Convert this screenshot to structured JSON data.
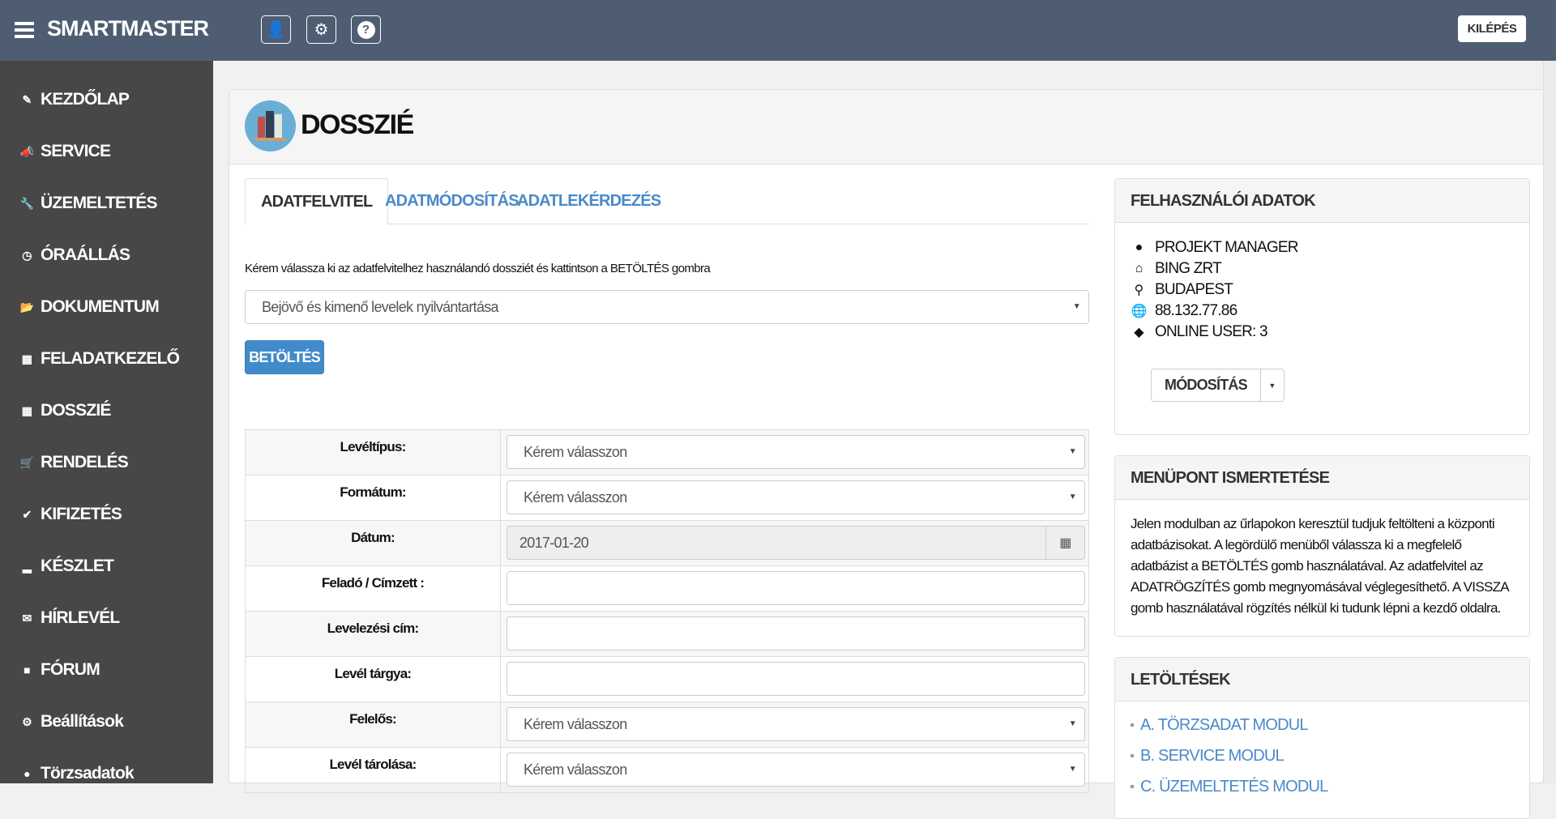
{
  "app": {
    "title": "SMARTMASTER",
    "logout": "KILÉPÉS",
    "top_icons": [
      "user-icon",
      "gear-icon",
      "question-icon"
    ]
  },
  "sidebar": {
    "items": [
      {
        "label": "KEZDŐLAP",
        "icon": "edit-icon"
      },
      {
        "label": "SERVICE",
        "icon": "bullhorn-icon"
      },
      {
        "label": "ÜZEMELTETÉS",
        "icon": "wrench-icon"
      },
      {
        "label": "ÓRAÁLLÁS",
        "icon": "clock-icon"
      },
      {
        "label": "DOKUMENTUM",
        "icon": "folder-open-icon"
      },
      {
        "label": "FELADATKEZELŐ",
        "icon": "calendar-icon"
      },
      {
        "label": "DOSSZIÉ",
        "icon": "grid-icon"
      },
      {
        "label": "RENDELÉS",
        "icon": "cart-icon"
      },
      {
        "label": "KIFIZETÉS",
        "icon": "check-circle-icon"
      },
      {
        "label": "KÉSZLET",
        "icon": "bar-chart-icon"
      },
      {
        "label": "HÍRLEVÉL",
        "icon": "envelope-icon"
      },
      {
        "label": "FÓRUM",
        "icon": "comment-icon"
      },
      {
        "label": "Beállítások",
        "icon": "cog-icon"
      },
      {
        "label": "Törzsadatok",
        "icon": "user-icon"
      }
    ]
  },
  "page": {
    "title": "DOSSZIÉ",
    "tabs": [
      {
        "label": "ADATFELVITEL",
        "active": true
      },
      {
        "label": "ADATMÓDOSÍTÁS"
      },
      {
        "label": "ADATLEKÉRDEZÉS"
      }
    ],
    "instruction": "Kérem válassza ki az adatfelvitelhez használandó dossziét és kattintson a BETÖLTÉS gombra",
    "dossier_select": "Bejövő és kimenő levelek nyilvántartása",
    "load_button": "BETÖLTÉS",
    "form": [
      {
        "label": "Levéltípus:",
        "type": "select",
        "value": "Kérem válasszon"
      },
      {
        "label": "Formátum:",
        "type": "select",
        "value": "Kérem válasszon"
      },
      {
        "label": "Dátum:",
        "type": "date",
        "value": "2017-01-20"
      },
      {
        "label": "Feladó / Címzett :",
        "type": "text",
        "value": ""
      },
      {
        "label": "Levelezési cím:",
        "type": "text",
        "value": ""
      },
      {
        "label": "Levél tárgya:",
        "type": "text",
        "value": ""
      },
      {
        "label": "Felelős:",
        "type": "select",
        "value": "Kérem válasszon"
      },
      {
        "label": "Levél tárolása:",
        "type": "select",
        "value": "Kérem válasszon"
      }
    ]
  },
  "user_box": {
    "title": "FELHASZNÁLÓI ADATOK",
    "lines": [
      {
        "icon": "user-icon",
        "text": "PROJEKT MANAGER"
      },
      {
        "icon": "home-icon",
        "text": "BING ZRT"
      },
      {
        "icon": "map-marker-icon",
        "text": "BUDAPEST"
      },
      {
        "icon": "globe-icon",
        "text": "88.132.77.86"
      },
      {
        "icon": "tags-icon",
        "text": "ONLINE USER: 3"
      }
    ],
    "modify": "MÓDOSÍTÁS"
  },
  "desc_box": {
    "title": "MENÜPONT ISMERTETÉSE",
    "text": "Jelen modulban az űrlapokon keresztül tudjuk feltölteni a központi adatbázisokat. A legördülő menüből válassza ki a megfelelő adatbázist a BETÖLTÉS gomb használatával. Az adatfelvitel az ADATRÖGZÍTÉS gomb megnyomásával véglegesíthető. A VISSZA gomb használatával rögzítés nélkül ki tudunk lépni a kezdő oldalra."
  },
  "downloads": {
    "title": "LETÖLTÉSEK",
    "links": [
      "A. TÖRZSADAT MODUL",
      "B. SERVICE MODUL",
      "C. ÜZEMELTETÉS MODUL"
    ]
  },
  "colors": {
    "topbar": "#4f5d73",
    "sidebar": "#474747",
    "accent": "#428bca",
    "link": "#4a8ac9"
  }
}
